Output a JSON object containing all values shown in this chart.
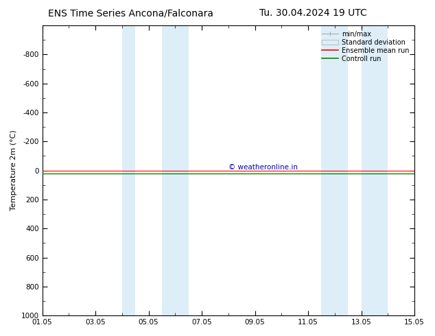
{
  "title_left": "ENS Time Series Ancona/Falconara",
  "title_right": "Tu. 30.04.2024 19 UTC",
  "ylabel": "Temperature 2m (°C)",
  "xlim_dates": [
    "2024-05-01",
    "2024-05-15"
  ],
  "ylim": [
    -1000,
    1000
  ],
  "yticks": [
    -800,
    -600,
    -400,
    -200,
    0,
    200,
    400,
    600,
    800,
    1000
  ],
  "xtick_labels": [
    "01.05",
    "03.05",
    "05.05",
    "07.05",
    "09.05",
    "11.05",
    "13.05",
    "15.05"
  ],
  "xtick_positions": [
    0,
    2,
    4,
    6,
    8,
    10,
    12,
    14
  ],
  "shade_bands": [
    [
      3.0,
      3.5
    ],
    [
      4.5,
      5.5
    ],
    [
      10.5,
      11.5
    ],
    [
      12.0,
      13.0
    ]
  ],
  "shade_color": "#ddeef8",
  "line_y": 20,
  "ensemble_mean_color": "#ff0000",
  "control_run_color": "#008800",
  "std_dev_color": "#ccddee",
  "minmax_color": "#999999",
  "copyright_text": "© weatheronline.in",
  "copyright_color": "#0000cc",
  "legend_entries": [
    "min/max",
    "Standard deviation",
    "Ensemble mean run",
    "Controll run"
  ],
  "legend_line_colors": [
    "#aaaaaa",
    "#ccddee",
    "#ff0000",
    "#008800"
  ],
  "background_color": "#ffffff",
  "title_fontsize": 10,
  "axis_fontsize": 8,
  "tick_fontsize": 7.5
}
